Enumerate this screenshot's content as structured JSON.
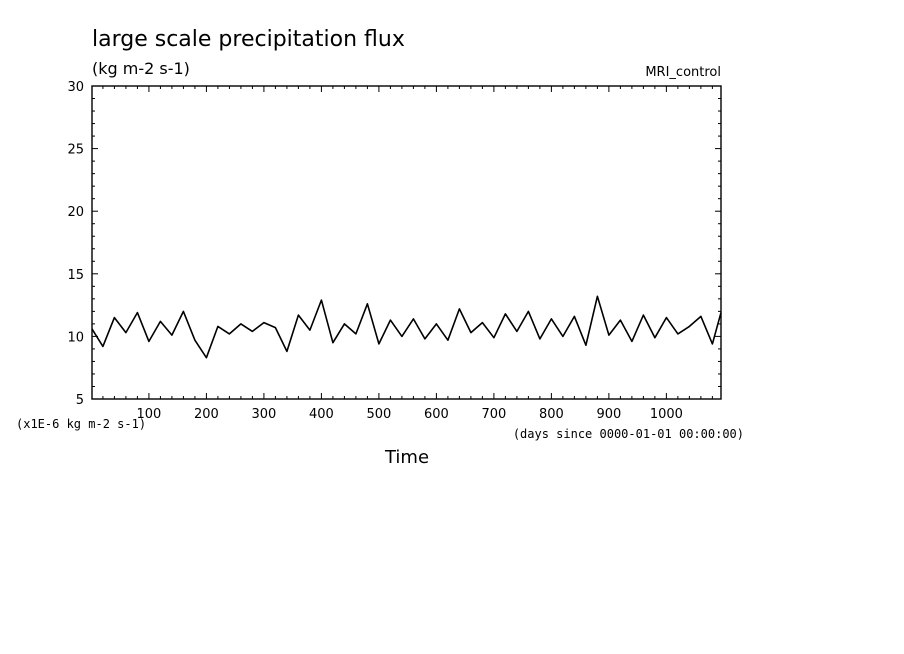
{
  "chart_data": {
    "type": "line",
    "title": "large scale precipitation flux",
    "subtitle": "(kg m-2 s-1)",
    "model_label": "MRI_control",
    "xlabel": "Time",
    "x_units_note": "(days since 0000-01-01 00:00:00)",
    "y_scale_note": "(x1E-6 kg m-2 s-1)",
    "xlim": [
      1,
      1095
    ],
    "ylim": [
      5,
      30
    ],
    "x_ticks": [
      100,
      200,
      300,
      400,
      500,
      600,
      700,
      800,
      900,
      1000
    ],
    "y_ticks": [
      5,
      10,
      15,
      20,
      25,
      30
    ],
    "grid": false,
    "series": [
      {
        "color": "#000000",
        "x": [
          1,
          20,
          40,
          60,
          80,
          100,
          120,
          140,
          160,
          180,
          200,
          220,
          240,
          260,
          280,
          300,
          320,
          340,
          360,
          380,
          400,
          420,
          440,
          460,
          480,
          500,
          520,
          540,
          560,
          580,
          600,
          620,
          640,
          660,
          680,
          700,
          720,
          740,
          760,
          780,
          800,
          820,
          840,
          860,
          880,
          900,
          920,
          940,
          960,
          980,
          1000,
          1020,
          1040,
          1060,
          1080,
          1095
        ],
        "y": [
          10.6,
          9.2,
          11.5,
          10.3,
          11.9,
          9.6,
          11.2,
          10.1,
          12.0,
          9.7,
          8.3,
          10.8,
          10.2,
          11.0,
          10.4,
          11.1,
          10.7,
          8.8,
          11.7,
          10.5,
          12.9,
          9.5,
          11.0,
          10.2,
          12.6,
          9.4,
          11.3,
          10.0,
          11.4,
          9.8,
          11.0,
          9.7,
          12.2,
          10.3,
          11.1,
          9.9,
          11.8,
          10.4,
          12.0,
          9.8,
          11.4,
          10.0,
          11.6,
          9.3,
          13.2,
          10.1,
          11.3,
          9.6,
          11.7,
          9.9,
          11.5,
          10.2,
          10.8,
          11.6,
          9.4,
          11.9
        ]
      }
    ]
  }
}
